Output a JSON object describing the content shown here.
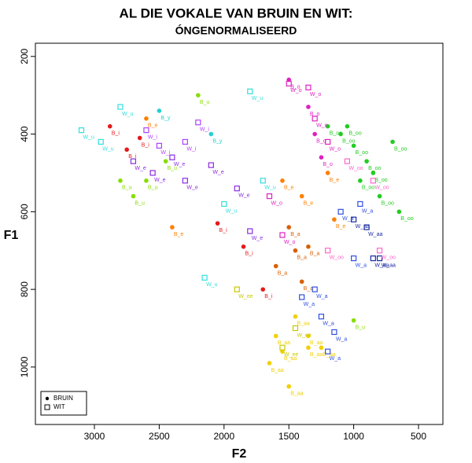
{
  "chart_data": {
    "type": "scatter",
    "title": "AL DIE VOKALE VAN BRUIN EN WIT:",
    "subtitle": "ÓNGENORMALISEERD",
    "x_label": "F2",
    "y_label": "F1",
    "xlim": [
      3455,
      312
    ],
    "ylim": [
      1148,
      166
    ],
    "xticks": [
      3000,
      2500,
      2000,
      1500,
      1000,
      500
    ],
    "yticks": [
      200,
      400,
      600,
      800,
      1000
    ],
    "legend": "bottom-left",
    "series": [
      {
        "name": "BRUIN",
        "marker": "circle",
        "x": [
          2880,
          2750,
          2650,
          2050,
          1850,
          1700,
          2600,
          2400,
          1550,
          1400,
          1200,
          1150,
          1100,
          1000,
          900,
          850,
          950,
          800,
          700,
          650,
          1050,
          1200,
          2800,
          2600,
          2450,
          2700,
          1000,
          2200,
          1600,
          1550,
          1350,
          1250,
          1500,
          1650,
          1450,
          1350,
          1500,
          1350,
          1300,
          1250,
          1500,
          1450,
          1600,
          1400,
          1350,
          2500,
          2100
        ],
        "y": [
          380,
          440,
          410,
          630,
          690,
          800,
          360,
          640,
          520,
          560,
          500,
          620,
          400,
          430,
          470,
          500,
          520,
          560,
          420,
          600,
          380,
          380,
          520,
          520,
          470,
          560,
          880,
          300,
          920,
          960,
          920,
          950,
          1050,
          990,
          870,
          950,
          260,
          330,
          400,
          460,
          640,
          700,
          740,
          780,
          690,
          340,
          400
        ],
        "labels": [
          "B_i",
          "B_i",
          "B_i",
          "B_i",
          "B_i",
          "B_i",
          "B_e",
          "B_e",
          "B_e",
          "B_e",
          "B_e",
          "B_e",
          "B_oo",
          "B_oo",
          "B_oo",
          "B_oo",
          "B_oo",
          "B_oo",
          "B_oo",
          "B_oo",
          "B_oo",
          "B_oo",
          "B_u",
          "B_u",
          "B_u",
          "B_u",
          "B_u",
          "B_u",
          "B_aa",
          "B_aa",
          "B_aa",
          "B_aa",
          "B_aa",
          "B_aa",
          "B_aa",
          "B_aa",
          "B_o",
          "B_o",
          "B_o",
          "B_o",
          "B_a",
          "B_a",
          "B_a",
          "B_a",
          "B_a",
          "B_y",
          "B_y"
        ],
        "colors": [
          "#e41a1c",
          "#e41a1c",
          "#e41a1c",
          "#e41a1c",
          "#e41a1c",
          "#e41a1c",
          "#ff7f00",
          "#ff7f00",
          "#ff7f00",
          "#ff7f00",
          "#ff7f00",
          "#ff7f00",
          "#22cc22",
          "#22cc22",
          "#22cc22",
          "#22cc22",
          "#22cc22",
          "#22cc22",
          "#22cc22",
          "#22cc22",
          "#22cc22",
          "#22cc22",
          "#88dd00",
          "#88dd00",
          "#88dd00",
          "#88dd00",
          "#88dd00",
          "#88dd00",
          "#f2d000",
          "#f2d000",
          "#f2d000",
          "#f2d000",
          "#f2d000",
          "#f2d000",
          "#f2d000",
          "#f2d000",
          "#e020c0",
          "#e020c0",
          "#e020c0",
          "#e020c0",
          "#d95f02",
          "#d95f02",
          "#d95f02",
          "#d95f02",
          "#d95f02",
          "#20d0d0",
          "#20d0d0"
        ]
      },
      {
        "name": "WIT",
        "marker": "square",
        "x": [
          3100,
          2950,
          1800,
          1700,
          2150,
          2000,
          2800,
          2700,
          2550,
          2400,
          2100,
          1900,
          1800,
          2300,
          1300,
          1250,
          1150,
          1200,
          1000,
          1100,
          950,
          1400,
          850,
          800,
          900,
          1000,
          1500,
          1350,
          1300,
          1200,
          1650,
          1550,
          1050,
          800,
          850,
          1200,
          2600,
          2500,
          2200,
          2300,
          1450,
          1550,
          1900
        ],
        "y": [
          390,
          420,
          290,
          520,
          770,
          580,
          330,
          470,
          500,
          460,
          480,
          540,
          650,
          520,
          800,
          870,
          910,
          960,
          720,
          600,
          580,
          820,
          720,
          720,
          640,
          620,
          270,
          280,
          360,
          420,
          560,
          660,
          470,
          700,
          520,
          700,
          390,
          430,
          370,
          420,
          900,
          950,
          800
        ],
        "labels": [
          "W_u",
          "W_u",
          "W_u",
          "W_u",
          "W_u",
          "W_u",
          "W_u",
          "W_e",
          "W_e",
          "W_e",
          "W_e",
          "W_e",
          "W_e",
          "W_e",
          "W_a",
          "W_a",
          "W_a",
          "W_a",
          "W_a",
          "W_a",
          "W_a",
          "W_a",
          "W_aa",
          "W_aa",
          "W_aa",
          "W_aa",
          "W_o",
          "W_o",
          "W_o",
          "W_o",
          "W_o",
          "W_o",
          "W_oo",
          "W_oo",
          "W_oo",
          "W_oo",
          "W_i",
          "W_i",
          "W_i",
          "W_i",
          "W_ee",
          "W_ee",
          "W_ee"
        ],
        "colors": [
          "#33dddd",
          "#33dddd",
          "#33dddd",
          "#33dddd",
          "#33dddd",
          "#33dddd",
          "#33dddd",
          "#8a2be2",
          "#8a2be2",
          "#8a2be2",
          "#8a2be2",
          "#8a2be2",
          "#8a2be2",
          "#8a2be2",
          "#3050e0",
          "#3050e0",
          "#3050e0",
          "#3050e0",
          "#3050e0",
          "#3050e0",
          "#3050e0",
          "#3050e0",
          "#1a2aa0",
          "#1a2aa0",
          "#1a2aa0",
          "#1a2aa0",
          "#e020c0",
          "#e020c0",
          "#e020c0",
          "#e020c0",
          "#e020c0",
          "#e020c0",
          "#ff66cc",
          "#ff66cc",
          "#ff66cc",
          "#ff66cc",
          "#b040ff",
          "#b040ff",
          "#b040ff",
          "#b040ff",
          "#c8c800",
          "#c8c800",
          "#c8c800"
        ]
      }
    ]
  }
}
